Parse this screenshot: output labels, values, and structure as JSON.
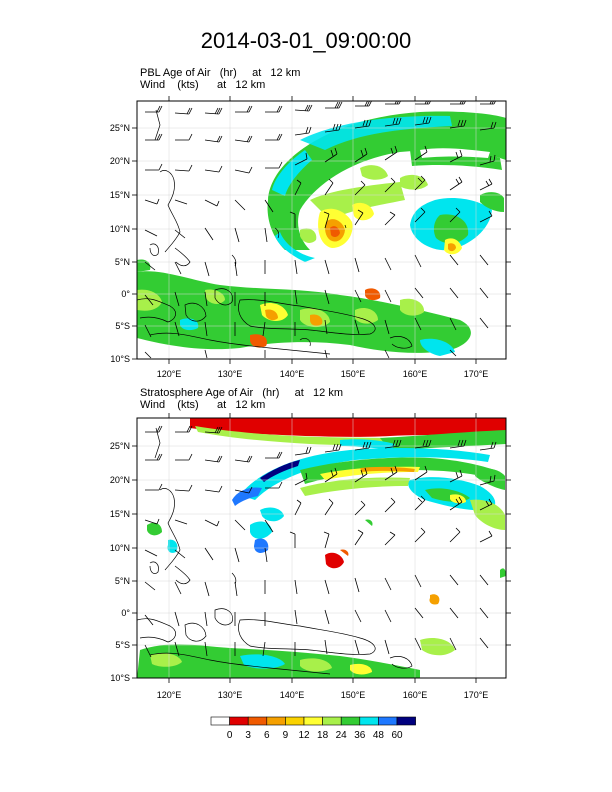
{
  "title": "2014-03-01_09:00:00",
  "panels": [
    {
      "field_line": "PBL Age of Air   (hr)     at   12 km",
      "wind_line": "Wind    (kts)      at   12 km"
    },
    {
      "field_line": "Stratosphere Age of Air   (hr)     at   12 km",
      "wind_line": "Wind    (kts)      at   12 km"
    }
  ],
  "axes": {
    "lon_labels": [
      "120°E",
      "130°E",
      "140°E",
      "150°E",
      "160°E",
      "170°E"
    ],
    "lat_labels": [
      "25°N",
      "20°N",
      "15°N",
      "10°N",
      "5°N",
      "0°",
      "5°S",
      "10°S"
    ],
    "lon_range": [
      116,
      173
    ],
    "lat_range": [
      -10,
      29
    ]
  },
  "colorbar": {
    "labels": [
      "0",
      "3",
      "6",
      "9",
      "12",
      "18",
      "24",
      "36",
      "48",
      "60"
    ],
    "colors": [
      "#ffffff",
      "#e00000",
      "#f05a00",
      "#f5a000",
      "#fad200",
      "#ffff33",
      "#a8f04a",
      "#33cc33",
      "#00e5ee",
      "#1e78ff",
      "#00007f"
    ]
  },
  "icons": [
    "wind-barb-icon"
  ]
}
